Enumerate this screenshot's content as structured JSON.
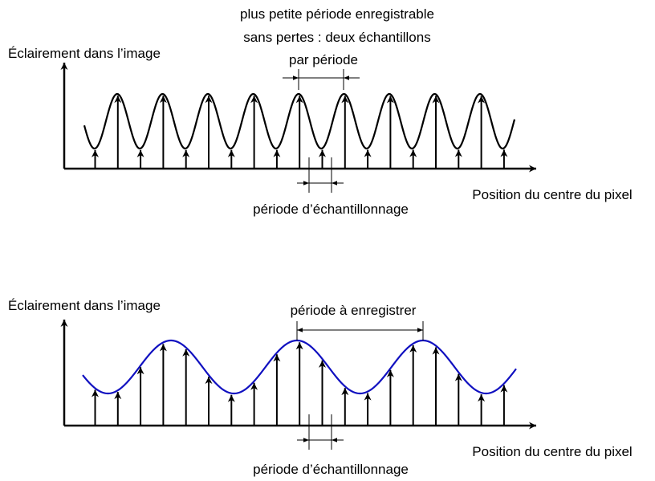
{
  "panels": [
    {
      "y_label": "Éclairement dans l’image",
      "x_label": "Position du centre du pixel",
      "annotation": [
        "plus petite période enregistrable",
        "sans pertes : deux échantillons",
        "par période"
      ],
      "sampling_label": "période d’échantillonnage"
    },
    {
      "y_label": "Éclairement dans l’image",
      "x_label": "Position du centre du pixel",
      "annotation": [
        "période à enregistrer"
      ],
      "sampling_label": "période d’échantillonnage"
    }
  ]
}
